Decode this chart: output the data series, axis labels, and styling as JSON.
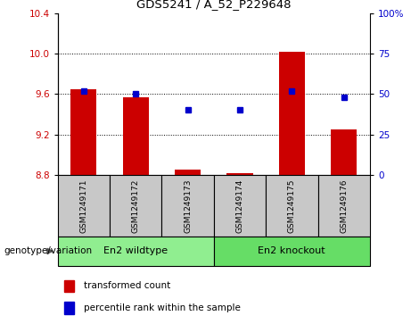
{
  "title": "GDS5241 / A_52_P229648",
  "samples": [
    "GSM1249171",
    "GSM1249172",
    "GSM1249173",
    "GSM1249174",
    "GSM1249175",
    "GSM1249176"
  ],
  "red_values": [
    9.65,
    9.57,
    8.85,
    8.82,
    10.02,
    9.25
  ],
  "blue_percentiles": [
    52,
    50,
    40,
    40,
    52,
    48
  ],
  "ylim_left": [
    8.8,
    10.4
  ],
  "ylim_right": [
    0,
    100
  ],
  "yticks_left": [
    8.8,
    9.2,
    9.6,
    10.0,
    10.4
  ],
  "yticks_right": [
    0,
    25,
    50,
    75,
    100
  ],
  "ytick_labels_right": [
    "0",
    "25",
    "50",
    "75",
    "100%"
  ],
  "hlines": [
    9.2,
    9.6,
    10.0
  ],
  "group_row_label": "genotype/variation",
  "groups": [
    {
      "label": "En2 wildtype",
      "start": 0,
      "end": 3,
      "color": "#90EE90"
    },
    {
      "label": "En2 knockout",
      "start": 3,
      "end": 6,
      "color": "#66DD66"
    }
  ],
  "legend_red_label": "transformed count",
  "legend_blue_label": "percentile rank within the sample",
  "bar_bottom": 8.8,
  "bar_color": "#CC0000",
  "dot_color": "#0000CC",
  "sample_box_color": "#C8C8C8",
  "plot_bg": "#FFFFFF"
}
